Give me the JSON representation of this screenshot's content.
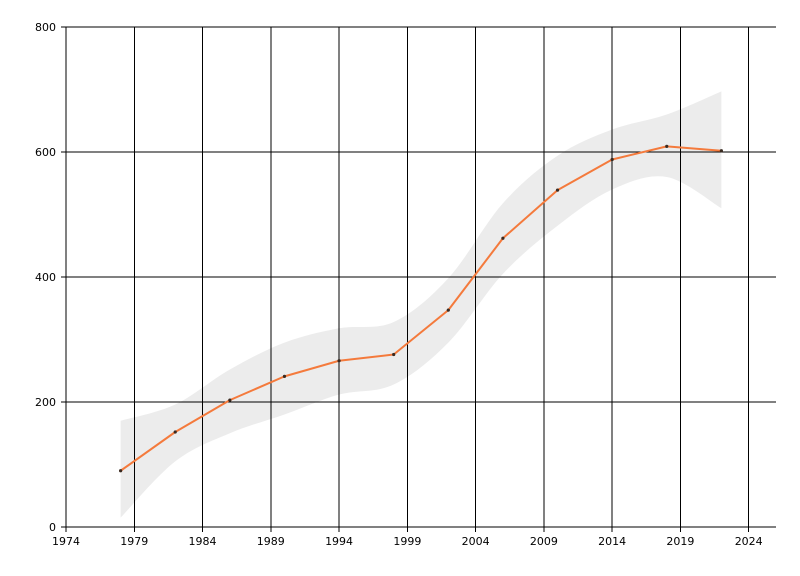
{
  "chart_data": {
    "type": "line",
    "title": "",
    "xlabel": "",
    "ylabel": "",
    "xlim": [
      1974,
      2026
    ],
    "ylim": [
      0,
      800
    ],
    "x_ticks": [
      1974,
      1979,
      1984,
      1989,
      1994,
      1999,
      2004,
      2009,
      2014,
      2019,
      2024
    ],
    "y_ticks": [
      0,
      200,
      400,
      600,
      800
    ],
    "grid": true,
    "legend": "none",
    "series": [
      {
        "x": [
          1978,
          1982,
          1986,
          1990,
          1994,
          1998,
          2002,
          2006,
          2010,
          2014,
          2018,
          2022
        ],
        "y": [
          90,
          152,
          203,
          241,
          266,
          276,
          347,
          462,
          539,
          588,
          609,
          602
        ],
        "lower": [
          15,
          105,
          150,
          180,
          212,
          228,
          295,
          405,
          482,
          540,
          560,
          510
        ],
        "upper": [
          170,
          196,
          252,
          295,
          318,
          328,
          398,
          518,
          594,
          636,
          660,
          697
        ],
        "color": "#f47a3c",
        "band_color": "#ececec"
      }
    ]
  }
}
